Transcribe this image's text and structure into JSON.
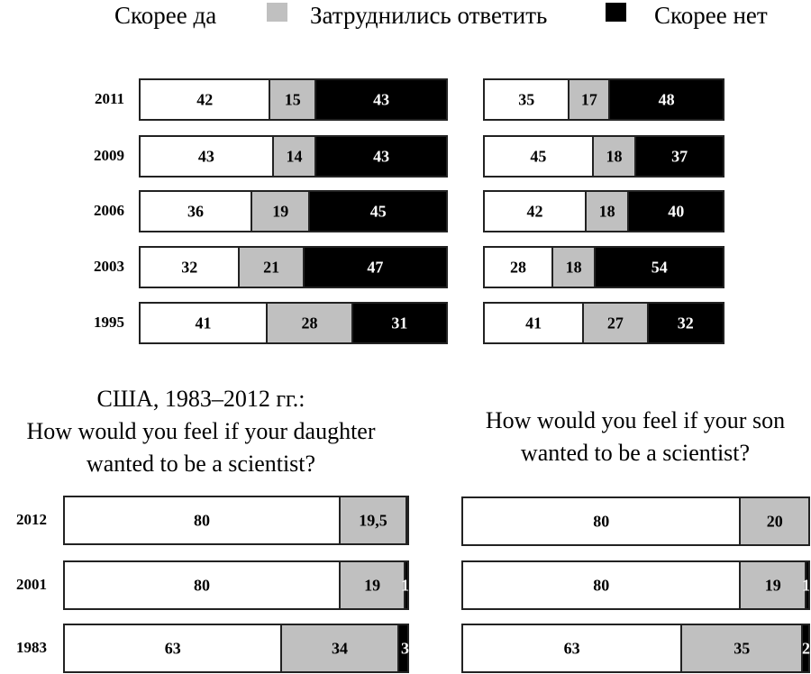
{
  "chart_data": [
    {
      "type": "bar",
      "orientation": "horizontal",
      "stacked": true,
      "title": "",
      "categories": [
        "2011",
        "2009",
        "2006",
        "2003",
        "1995"
      ],
      "series": [
        {
          "name": "Скорее да",
          "color": "#ffffff",
          "values": [
            42,
            43,
            36,
            32,
            41
          ],
          "labels": [
            "42",
            "43",
            "36",
            "32",
            "41"
          ]
        },
        {
          "name": "Затруднились ответить",
          "color": "#c0c0c0",
          "values": [
            15,
            14,
            19,
            21,
            28
          ],
          "labels": [
            "15",
            "14",
            "19",
            "21",
            "28"
          ]
        },
        {
          "name": "Скорее нет",
          "color": "#000000",
          "values": [
            43,
            43,
            45,
            47,
            31
          ],
          "labels": [
            "43",
            "43",
            "45",
            "47",
            "31"
          ]
        }
      ],
      "show_years": true
    },
    {
      "type": "bar",
      "orientation": "horizontal",
      "stacked": true,
      "title": "",
      "categories": [
        "2011",
        "2009",
        "2006",
        "2003",
        "1995"
      ],
      "series": [
        {
          "name": "Скорее да",
          "color": "#ffffff",
          "values": [
            35,
            45,
            42,
            28,
            41
          ],
          "labels": [
            "35",
            "45",
            "42",
            "28",
            "41"
          ]
        },
        {
          "name": "Затруднились ответить",
          "color": "#c0c0c0",
          "values": [
            17,
            18,
            18,
            18,
            27
          ],
          "labels": [
            "17",
            "18",
            "18",
            "18",
            "27"
          ]
        },
        {
          "name": "Скорее нет",
          "color": "#000000",
          "values": [
            48,
            37,
            40,
            54,
            32
          ],
          "labels": [
            "48",
            "37",
            "40",
            "54",
            "32"
          ]
        }
      ],
      "show_years": false
    },
    {
      "type": "bar",
      "orientation": "horizontal",
      "stacked": true,
      "title": [
        "США, 1983–2012 гг.:",
        "How would you feel if your daughter",
        "wanted to be a scientist?"
      ],
      "categories": [
        "2012",
        "2001",
        "1983"
      ],
      "series": [
        {
          "name": "Скорее да",
          "color": "#ffffff",
          "values": [
            80,
            80,
            63
          ],
          "labels": [
            "80",
            "80",
            "63"
          ]
        },
        {
          "name": "Затруднились ответить",
          "color": "#c0c0c0",
          "values": [
            19.5,
            19,
            34
          ],
          "labels": [
            "19,5",
            "19",
            "34"
          ]
        },
        {
          "name": "Скорее нет",
          "color": "#000000",
          "values": [
            0.5,
            1,
            3
          ],
          "labels": [
            "",
            "1",
            "3"
          ]
        }
      ],
      "show_years": true
    },
    {
      "type": "bar",
      "orientation": "horizontal",
      "stacked": true,
      "title": [
        "How would you feel if your son",
        "wanted to be a scientist?"
      ],
      "categories": [
        "2012",
        "2001",
        "1983"
      ],
      "series": [
        {
          "name": "Скорее да",
          "color": "#ffffff",
          "values": [
            80,
            80,
            63
          ],
          "labels": [
            "80",
            "80",
            "63"
          ]
        },
        {
          "name": "Затруднились ответить",
          "color": "#c0c0c0",
          "values": [
            20,
            19,
            35
          ],
          "labels": [
            "20",
            "19",
            "35"
          ]
        },
        {
          "name": "Скорее нет",
          "color": "#000000",
          "values": [
            0,
            1,
            2
          ],
          "labels": [
            "",
            "1",
            "2"
          ]
        }
      ],
      "show_years": false
    }
  ],
  "legend": {
    "items": [
      {
        "label": "Скорее да",
        "color": "#ffffff"
      },
      {
        "label": "Затруднились ответить",
        "color": "#c0c0c0"
      },
      {
        "label": "Скорее нет",
        "color": "#000000"
      }
    ],
    "placement": "top"
  }
}
